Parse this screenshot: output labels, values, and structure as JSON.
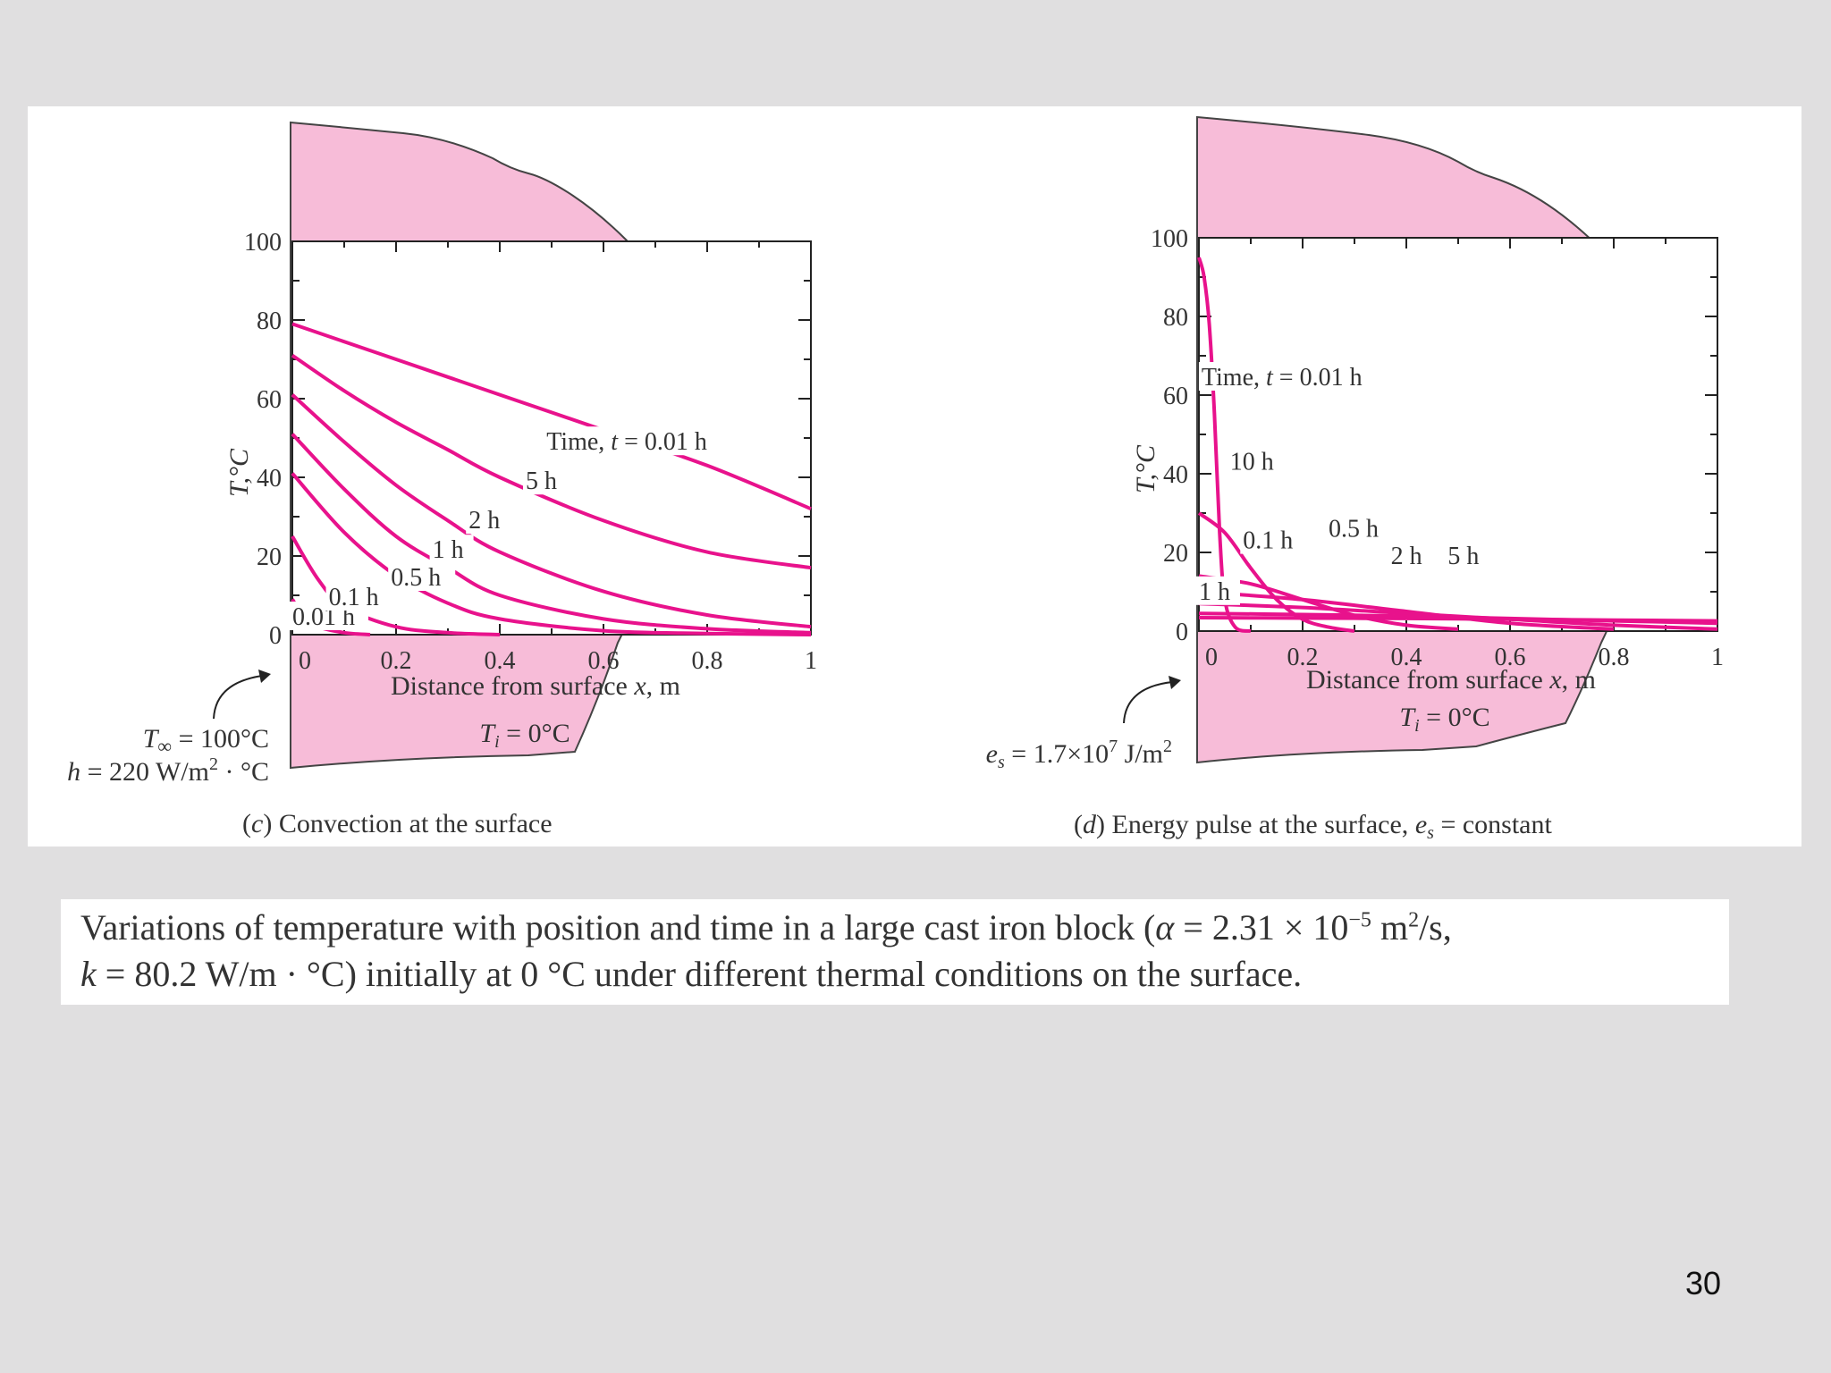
{
  "colors": {
    "page_bg": "#e0dfe0",
    "block_fill": "#f7bcd8",
    "curve": "#e8128c",
    "axis": "#222222"
  },
  "slide_number": "30",
  "caption": {
    "line1_a": "Variations of temperature with position and time in a large cast iron block (",
    "line1_alpha": "α",
    "line1_b": " = 2.31 × 10",
    "line1_exp": "−5",
    "line1_c": " m",
    "line1_sq": "2",
    "line1_d": "/s,",
    "line2_k": "k",
    "line2_rest": " = 80.2 W/m · °C) initially at 0 °C under different thermal conditions on the surface."
  },
  "panel_c": {
    "ylabel": "T,°C",
    "xlabel_a": "Distance from surface ",
    "xlabel_x": "x",
    "xlabel_b": ", m",
    "ti_T": "T",
    "ti_i": "i",
    "ti_rest": " = 0°C",
    "cond1_T": "T",
    "cond1_sub": "∞",
    "cond1_rest": " = 100°C",
    "cond2_h": "h",
    "cond2_rest": " = 220 W/m",
    "cond2_sq": "2",
    "cond2_end": " · °C",
    "caption_paren_l": "(",
    "caption_letter": "c",
    "caption_rest": ") Convection at the surface"
  },
  "panel_d": {
    "ylabel": "T,°C",
    "xlabel_a": "Distance from surface ",
    "xlabel_x": "x",
    "xlabel_b": ", m",
    "ti_T": "T",
    "ti_i": "i",
    "ti_rest": " = 0°C",
    "pulse_e": "e",
    "pulse_s": "s",
    "pulse_rest": " = 1.7×10",
    "pulse_exp": "7",
    "pulse_unit": " J/m",
    "pulse_sq": "2",
    "caption_paren_l": "(",
    "caption_letter": "d",
    "caption_rest_a": ") Energy pulse at the surface, ",
    "caption_e": "e",
    "caption_s": "s",
    "caption_rest_b": " = constant"
  },
  "chart_data": [
    {
      "type": "line",
      "ylabel": "T,°C",
      "xlabel": "Distance from surface x, m",
      "xlim": [
        0,
        1
      ],
      "ylim": [
        0,
        100
      ],
      "xticks": [
        "0",
        "0.2",
        "0.4",
        "0.6",
        "0.8",
        "1"
      ],
      "yticks": [
        "0",
        "20",
        "40",
        "60",
        "80",
        "100"
      ],
      "series": [
        {
          "name": "0.01 h",
          "x": [
            0,
            0.02,
            0.05,
            0.1,
            0.15
          ],
          "y": [
            9,
            5,
            2,
            0.5,
            0
          ]
        },
        {
          "name": "0.1 h",
          "x": [
            0,
            0.05,
            0.1,
            0.2,
            0.3,
            0.4
          ],
          "y": [
            25,
            14,
            7,
            2,
            0.5,
            0
          ]
        },
        {
          "name": "0.5 h",
          "x": [
            0,
            0.1,
            0.2,
            0.3,
            0.4,
            0.6,
            0.8,
            1.0
          ],
          "y": [
            41,
            26,
            15,
            8,
            4,
            1,
            0.3,
            0
          ]
        },
        {
          "name": "1 h",
          "x": [
            0,
            0.1,
            0.2,
            0.3,
            0.4,
            0.6,
            0.8,
            1.0
          ],
          "y": [
            51,
            37,
            25,
            17,
            10,
            4,
            1.5,
            0.5
          ]
        },
        {
          "name": "2 h",
          "x": [
            0,
            0.1,
            0.2,
            0.3,
            0.4,
            0.6,
            0.8,
            1.0
          ],
          "y": [
            61,
            49,
            38,
            29,
            21,
            11,
            5,
            2
          ]
        },
        {
          "name": "5 h",
          "x": [
            0,
            0.1,
            0.2,
            0.3,
            0.4,
            0.6,
            0.8,
            1.0
          ],
          "y": [
            71,
            62,
            54,
            47,
            40,
            29,
            21,
            17
          ]
        },
        {
          "name": "Time, t = 0.01 h",
          "x": [
            0,
            0.2,
            0.4,
            0.6,
            0.8,
            1.0
          ],
          "y": [
            79,
            70,
            61,
            52,
            43,
            32
          ]
        }
      ]
    },
    {
      "type": "line",
      "ylabel": "T,°C",
      "xlabel": "Distance from surface x, m",
      "xlim": [
        0,
        1
      ],
      "ylim": [
        0,
        100
      ],
      "xticks": [
        "0",
        "0.2",
        "0.4",
        "0.6",
        "0.8",
        "1"
      ],
      "yticks": [
        "0",
        "20",
        "40",
        "60",
        "80",
        "100"
      ],
      "series": [
        {
          "name": "Time, t = 0.01 h",
          "x": [
            0,
            0.01,
            0.02,
            0.03,
            0.04,
            0.05,
            0.07,
            0.1
          ],
          "y": [
            95,
            90,
            78,
            55,
            25,
            8,
            1,
            0
          ]
        },
        {
          "name": "0.1 h",
          "x": [
            0,
            0.05,
            0.1,
            0.15,
            0.2,
            0.25,
            0.3
          ],
          "y": [
            30,
            25,
            16,
            8,
            3,
            1,
            0
          ]
        },
        {
          "name": "0.5 h",
          "x": [
            0,
            0.1,
            0.2,
            0.3,
            0.4,
            0.5
          ],
          "y": [
            14,
            12,
            8,
            4,
            1.5,
            0.5
          ]
        },
        {
          "name": "1 h",
          "x": [
            0,
            0.2,
            0.4,
            0.6,
            0.8
          ],
          "y": [
            10,
            8,
            5,
            2,
            0.5
          ]
        },
        {
          "name": "2 h",
          "x": [
            0,
            0.2,
            0.4,
            0.6,
            0.8,
            1.0
          ],
          "y": [
            7,
            6,
            4.5,
            3,
            1.5,
            0.5
          ]
        },
        {
          "name": "5 h",
          "x": [
            0,
            0.2,
            0.4,
            0.6,
            0.8,
            1.0
          ],
          "y": [
            4.5,
            4.2,
            3.8,
            3.2,
            2.6,
            2
          ]
        },
        {
          "name": "10 h",
          "x": [
            0,
            0.2,
            0.4,
            0.6,
            0.8,
            1.0
          ],
          "y": [
            3.4,
            3.3,
            3.2,
            3,
            2.8,
            2.6
          ]
        }
      ]
    }
  ]
}
